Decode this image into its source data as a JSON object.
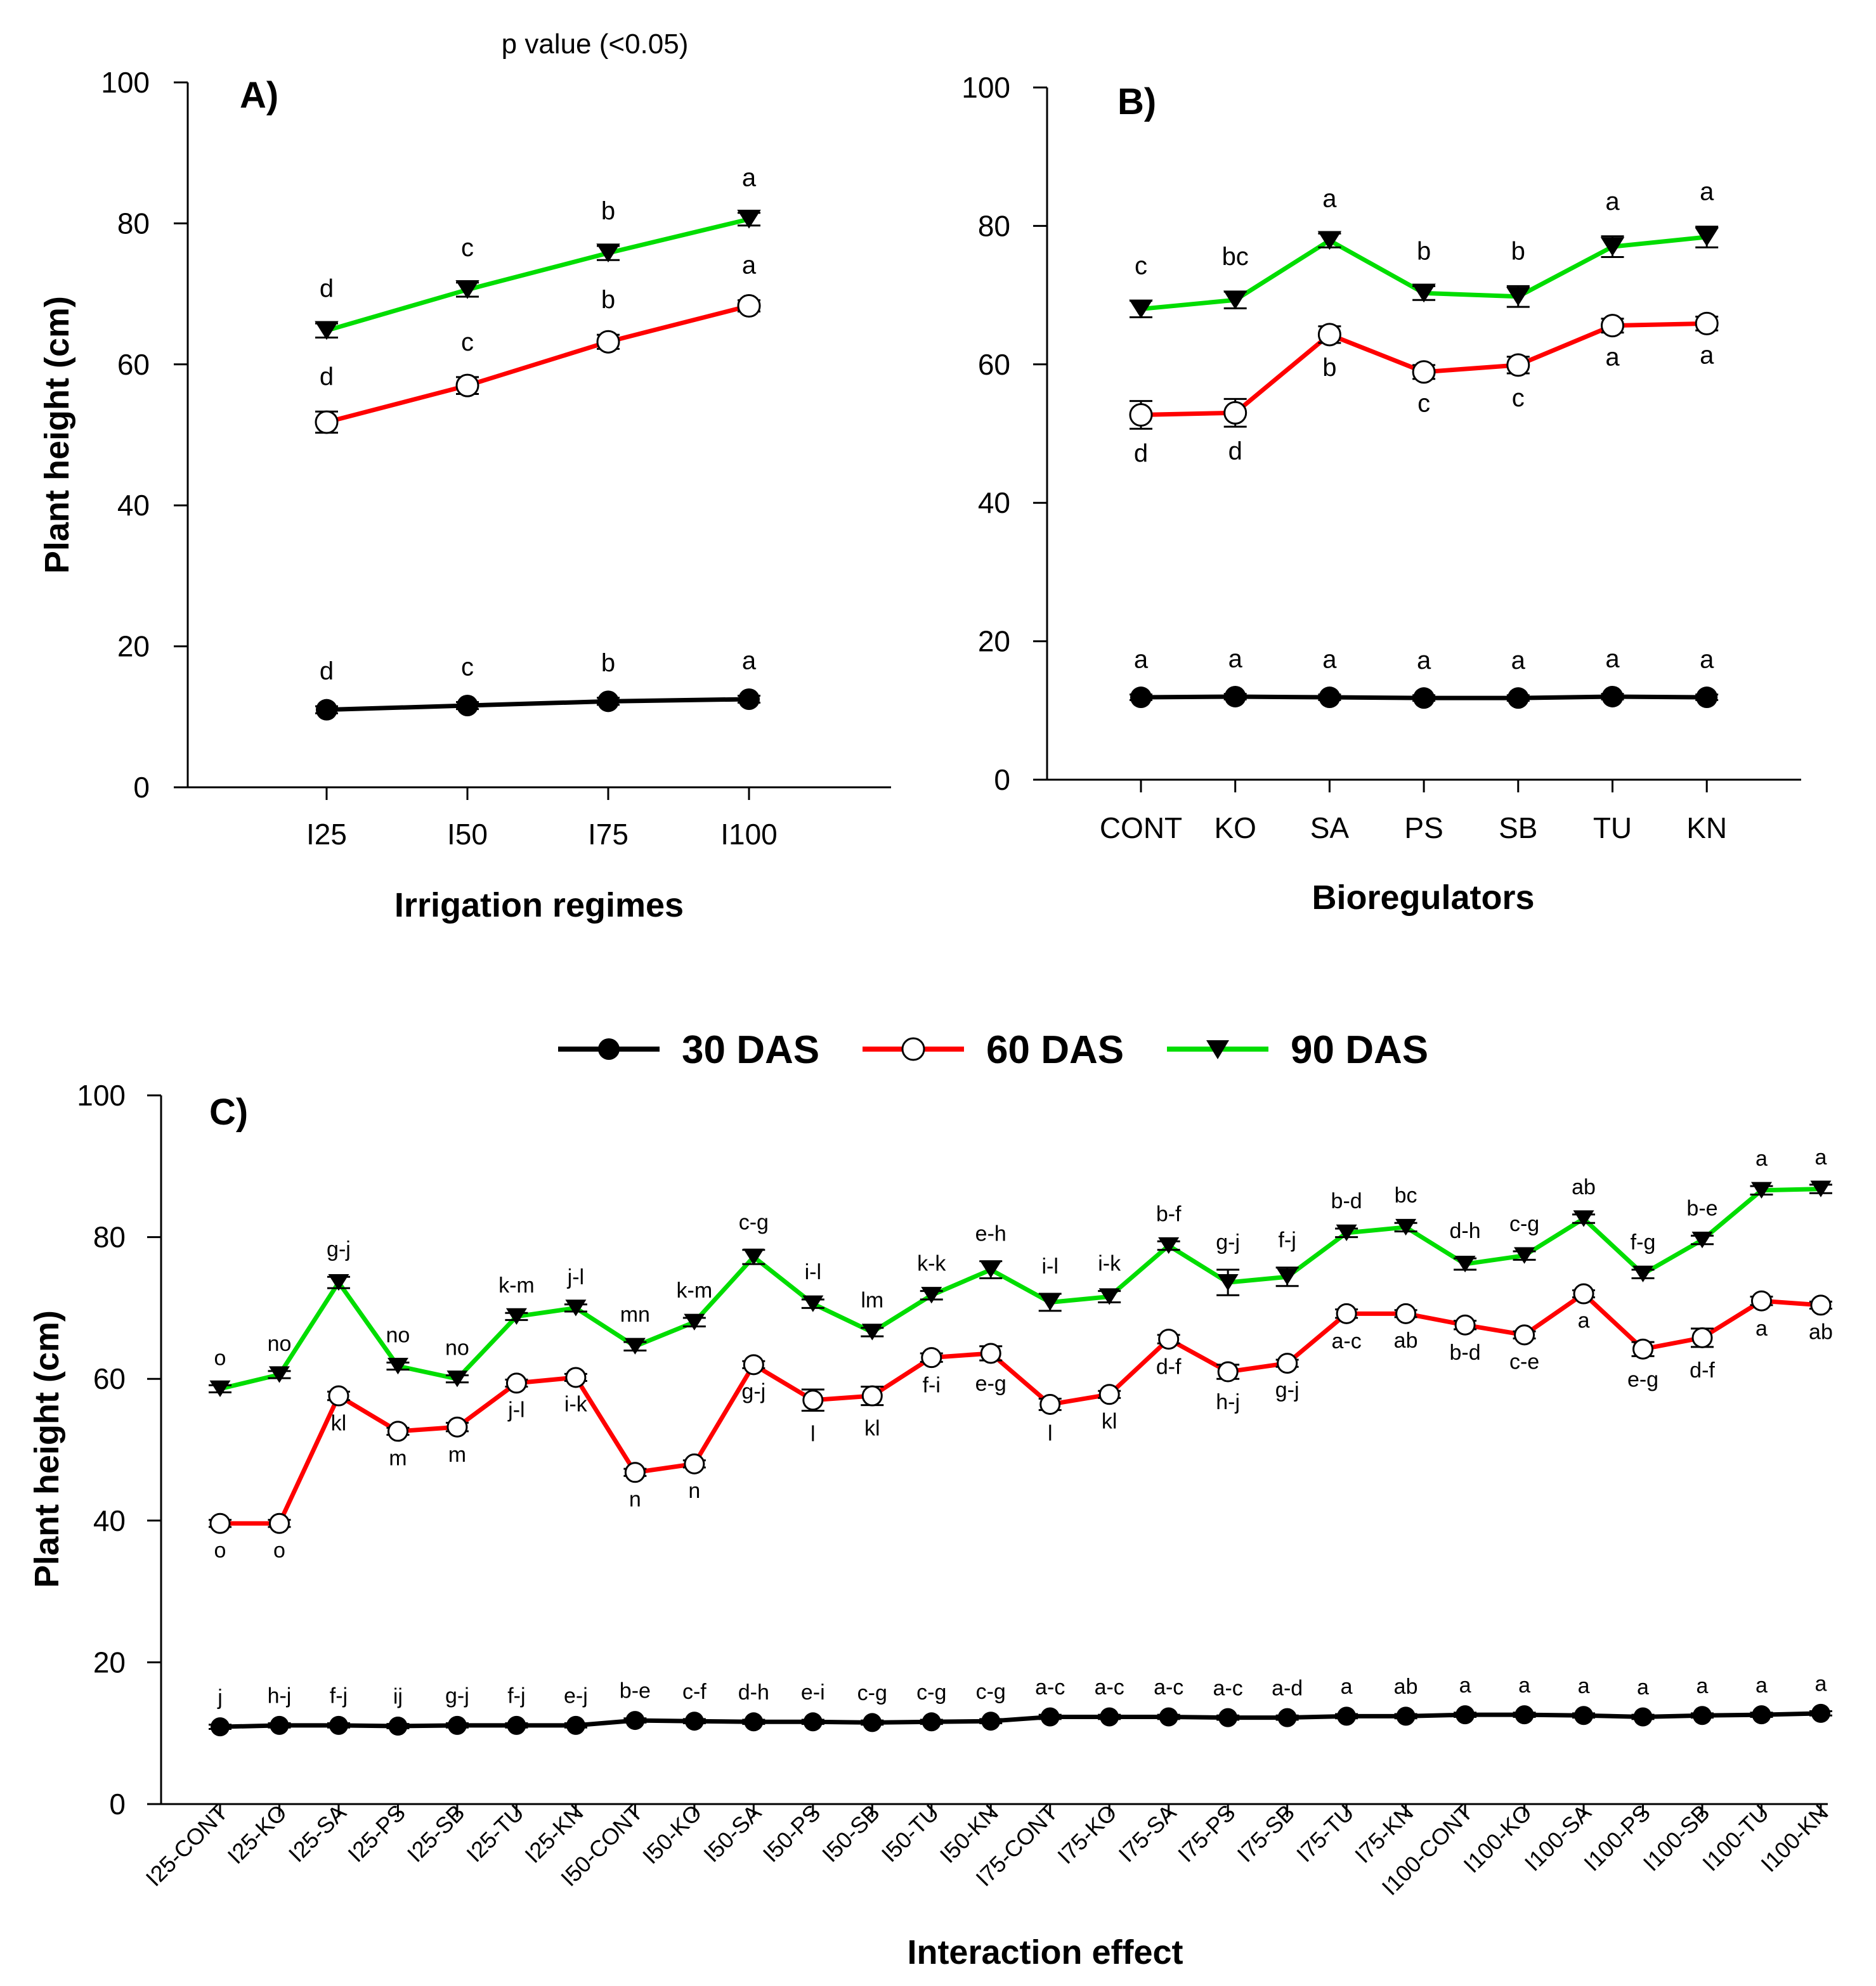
{
  "p_value_label": "p value (<0.05)",
  "legend": [
    {
      "name": "30 DAS",
      "color": "#000000",
      "marker": "filled-circle-icon"
    },
    {
      "name": "60 DAS",
      "color": "#ff0000",
      "marker": "open-circle-icon"
    },
    {
      "name": "90 DAS",
      "color": "#00dd00",
      "marker": "filled-triangle-down-icon"
    }
  ],
  "chart_data": [
    {
      "type": "line",
      "panel": "A)",
      "xlabel": "Irrigation regimes",
      "ylabel": "Plant height (cm)",
      "ylim": [
        0,
        100
      ],
      "yticks": [
        0,
        20,
        40,
        60,
        80,
        100
      ],
      "categories": [
        "I25",
        "I50",
        "I75",
        "I100"
      ],
      "series": [
        {
          "name": "30 DAS",
          "values": [
            11.0,
            11.6,
            12.2,
            12.5
          ],
          "errors": [
            0.5,
            0.5,
            0.5,
            0.5
          ],
          "letters": [
            "d",
            "c",
            "b",
            "a"
          ]
        },
        {
          "name": "60 DAS",
          "values": [
            51.8,
            57.0,
            63.2,
            68.3
          ],
          "errors": [
            1.5,
            1.2,
            1.0,
            0.8
          ],
          "letters": [
            "d",
            "c",
            "b",
            "a"
          ]
        },
        {
          "name": "90 DAS",
          "values": [
            64.8,
            70.6,
            75.8,
            80.6
          ],
          "errors": [
            1.0,
            1.0,
            1.0,
            0.9
          ],
          "letters": [
            "d",
            "c",
            "b",
            "a"
          ]
        }
      ]
    },
    {
      "type": "line",
      "panel": "B)",
      "xlabel": "Bioregulators",
      "ylabel": "",
      "ylim": [
        0,
        100
      ],
      "yticks": [
        0,
        20,
        40,
        60,
        80,
        100
      ],
      "categories": [
        "CONT",
        "KO",
        "SA",
        "PS",
        "SB",
        "TU",
        "KN"
      ],
      "series": [
        {
          "name": "30 DAS",
          "values": [
            11.9,
            12.0,
            11.9,
            11.8,
            11.8,
            12.0,
            11.9
          ],
          "errors": [
            0.4,
            0.4,
            0.4,
            0.4,
            0.4,
            0.4,
            0.4
          ],
          "letters": [
            "a",
            "a",
            "a",
            "a",
            "a",
            "a",
            "a"
          ]
        },
        {
          "name": "60 DAS",
          "values": [
            52.7,
            53.0,
            64.3,
            58.9,
            59.9,
            65.6,
            65.9
          ],
          "errors": [
            2.0,
            2.0,
            1.2,
            1.0,
            1.2,
            1.0,
            1.0
          ],
          "letters": [
            "d",
            "d",
            "b",
            "c",
            "c",
            "a",
            "a"
          ]
        },
        {
          "name": "90 DAS",
          "values": [
            68.0,
            69.3,
            77.9,
            70.3,
            69.8,
            77.0,
            78.4
          ],
          "errors": [
            1.2,
            1.2,
            1.0,
            1.0,
            1.5,
            1.5,
            1.5
          ],
          "letters": [
            "c",
            "bc",
            "a",
            "b",
            "b",
            "a",
            "a"
          ]
        }
      ]
    },
    {
      "type": "line",
      "panel": "C)",
      "xlabel": "Interaction effect",
      "ylabel": "Plant height (cm)",
      "ylim": [
        0,
        100
      ],
      "yticks": [
        0,
        20,
        40,
        60,
        80,
        100
      ],
      "categories": [
        "I25-CONT",
        "I25-KO",
        "I25-SA",
        "I25-PS",
        "I25-SB",
        "I25-TU",
        "I25-KN",
        "I50-CONT",
        "I50-KO",
        "I50-SA",
        "I50-PS",
        "I50-SB",
        "I50-TU",
        "I50-KN",
        "I75-CONT",
        "I75-KO",
        "I75-SA",
        "I75-PS",
        "I75-SB",
        "I75-TU",
        "I75-KN",
        "I100-CONT",
        "I100-KO",
        "I100-SA",
        "I100-PS",
        "I100-SB",
        "I100-TU",
        "I100-KN"
      ],
      "series": [
        {
          "name": "30 DAS",
          "values": [
            10.9,
            11.1,
            11.1,
            11.0,
            11.1,
            11.1,
            11.1,
            11.8,
            11.7,
            11.6,
            11.6,
            11.5,
            11.6,
            11.7,
            12.3,
            12.3,
            12.3,
            12.2,
            12.2,
            12.4,
            12.4,
            12.6,
            12.6,
            12.5,
            12.3,
            12.5,
            12.6,
            12.8
          ],
          "errors": [
            0.3,
            0.3,
            0.3,
            0.3,
            0.3,
            0.3,
            0.3,
            0.3,
            0.3,
            0.3,
            0.3,
            0.3,
            0.3,
            0.3,
            0.3,
            0.3,
            0.3,
            0.3,
            0.3,
            0.3,
            0.3,
            0.3,
            0.3,
            0.3,
            0.3,
            0.3,
            0.3,
            0.3
          ],
          "letters": [
            "j",
            "h-j",
            "f-j",
            "ij",
            "g-j",
            "f-j",
            "e-j",
            "b-e",
            "c-f",
            "d-h",
            "e-i",
            "c-g",
            "c-g",
            "c-g",
            "a-c",
            "a-c",
            "a-c",
            "a-c",
            "a-d",
            "a",
            "ab",
            "a",
            "a",
            "a",
            "a",
            "a",
            "a",
            "a"
          ]
        },
        {
          "name": "60 DAS",
          "values": [
            39.6,
            39.6,
            57.6,
            52.6,
            53.2,
            59.4,
            60.2,
            46.8,
            48.0,
            62.0,
            57.0,
            57.6,
            63.0,
            63.6,
            56.4,
            57.8,
            65.6,
            61.0,
            62.2,
            69.2,
            69.2,
            67.6,
            66.2,
            72.0,
            64.2,
            65.8,
            71.0,
            70.4
          ],
          "errors": [
            0.5,
            0.5,
            0.6,
            0.5,
            0.6,
            0.5,
            0.5,
            0.5,
            0.5,
            0.5,
            1.5,
            1.3,
            0.6,
            1.0,
            0.8,
            0.5,
            0.6,
            1.0,
            0.5,
            0.6,
            0.5,
            0.6,
            0.5,
            0.5,
            1.0,
            1.3,
            0.6,
            0.5
          ],
          "letters": [
            "o",
            "o",
            "kl",
            "m",
            "m",
            "j-l",
            "i-k",
            "n",
            "n",
            "g-j",
            "l",
            "kl",
            "f-i",
            "e-g",
            "l",
            "kl",
            "d-f",
            "h-j",
            "g-j",
            "a-c",
            "ab",
            "b-d",
            "c-e",
            "a",
            "e-g",
            "d-f",
            "a",
            "ab"
          ]
        },
        {
          "name": "90 DAS",
          "values": [
            58.6,
            60.6,
            73.6,
            61.8,
            60.0,
            68.8,
            70.0,
            64.6,
            68.0,
            77.2,
            70.6,
            66.6,
            71.8,
            75.4,
            70.8,
            71.6,
            78.8,
            73.6,
            74.4,
            80.6,
            81.4,
            76.2,
            77.4,
            82.6,
            74.8,
            79.6,
            86.6,
            86.8
          ],
          "errors": [
            0.5,
            0.5,
            0.8,
            0.5,
            0.5,
            0.5,
            0.5,
            0.6,
            0.6,
            1.0,
            0.6,
            0.6,
            0.6,
            1.2,
            1.2,
            0.8,
            0.6,
            1.8,
            1.3,
            0.6,
            0.6,
            0.8,
            0.6,
            0.6,
            0.6,
            0.6,
            0.6,
            0.6
          ],
          "letters": [
            "o",
            "no",
            "g-j",
            "no",
            "no",
            "k-m",
            "j-l",
            "mn",
            "k-m",
            "c-g",
            "i-l",
            "lm",
            "k-k",
            "e-h",
            "i-l",
            "i-k",
            "b-f",
            "g-j",
            "f-j",
            "b-d",
            "bc",
            "d-h",
            "c-g",
            "ab",
            "f-g",
            "b-e",
            "a",
            "a"
          ]
        }
      ]
    }
  ]
}
